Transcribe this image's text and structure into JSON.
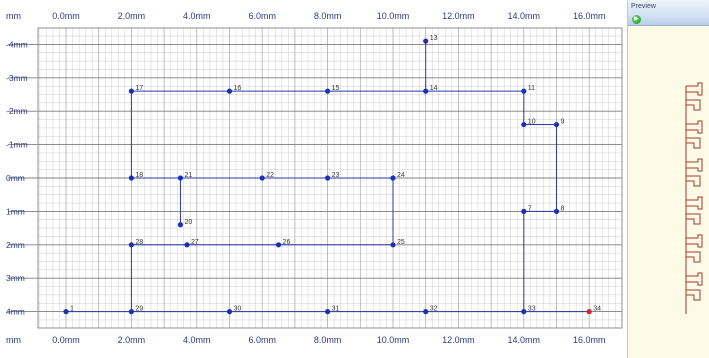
{
  "ruler": {
    "top_corner": "mm",
    "bottom_corner": "mm",
    "x_labels": [
      {
        "v": 0,
        "text": "0.0mm"
      },
      {
        "v": 2,
        "text": "2.0mm"
      },
      {
        "v": 4,
        "text": "4.0mm"
      },
      {
        "v": 6,
        "text": "6.0mm"
      },
      {
        "v": 8,
        "text": "8.0mm"
      },
      {
        "v": 10,
        "text": "10.0mm"
      },
      {
        "v": 12,
        "text": "12.0mm"
      },
      {
        "v": 14,
        "text": "14.0mm"
      },
      {
        "v": 16,
        "text": "16.0mm"
      }
    ],
    "y_labels": [
      {
        "v": -4,
        "text": "-4mm"
      },
      {
        "v": -3,
        "text": "-3mm"
      },
      {
        "v": -2,
        "text": "-2mm"
      },
      {
        "v": -1,
        "text": "-1mm"
      },
      {
        "v": 0,
        "text": "0mm"
      },
      {
        "v": 1,
        "text": "1mm"
      },
      {
        "v": 2,
        "text": "2mm"
      },
      {
        "v": 3,
        "text": "3mm"
      },
      {
        "v": 4,
        "text": "4mm"
      }
    ]
  },
  "points": [
    {
      "id": "1",
      "x": 0,
      "y": 4
    },
    {
      "id": "29",
      "x": 2,
      "y": 4
    },
    {
      "id": "30",
      "x": 5,
      "y": 4
    },
    {
      "id": "31",
      "x": 8,
      "y": 4
    },
    {
      "id": "32",
      "x": 11,
      "y": 4
    },
    {
      "id": "33",
      "x": 14,
      "y": 4
    },
    {
      "id": "34",
      "x": 16,
      "y": 4,
      "selected": true
    },
    {
      "id": "28",
      "x": 2,
      "y": 2
    },
    {
      "id": "27",
      "x": 3.7,
      "y": 2
    },
    {
      "id": "26",
      "x": 6.5,
      "y": 2
    },
    {
      "id": "25",
      "x": 10,
      "y": 2
    },
    {
      "id": "20",
      "x": 3.5,
      "y": 1.4
    },
    {
      "id": "7",
      "x": 14,
      "y": 1
    },
    {
      "id": "8",
      "x": 15,
      "y": 1
    },
    {
      "id": "18",
      "x": 2,
      "y": 0
    },
    {
      "id": "21",
      "x": 3.5,
      "y": 0
    },
    {
      "id": "22",
      "x": 6,
      "y": 0
    },
    {
      "id": "23",
      "x": 8,
      "y": 0
    },
    {
      "id": "24",
      "x": 10,
      "y": 0
    },
    {
      "id": "10",
      "x": 14,
      "y": -1.6
    },
    {
      "id": "9",
      "x": 15,
      "y": -1.6
    },
    {
      "id": "17",
      "x": 2,
      "y": -2.6
    },
    {
      "id": "16",
      "x": 5,
      "y": -2.6
    },
    {
      "id": "15",
      "x": 8,
      "y": -2.6
    },
    {
      "id": "14",
      "x": 11,
      "y": -2.6
    },
    {
      "id": "11",
      "x": 14,
      "y": -2.6
    },
    {
      "id": "13",
      "x": 11,
      "y": -4.1
    }
  ],
  "segments": [
    [
      "1",
      "29"
    ],
    [
      "29",
      "30"
    ],
    [
      "30",
      "31"
    ],
    [
      "31",
      "32"
    ],
    [
      "32",
      "33"
    ],
    [
      "33",
      "34"
    ],
    [
      "29",
      "28"
    ],
    [
      "28",
      "27"
    ],
    [
      "27",
      "26"
    ],
    [
      "26",
      "25"
    ],
    [
      "25",
      "24"
    ],
    [
      "24",
      "23"
    ],
    [
      "23",
      "22"
    ],
    [
      "22",
      "21"
    ],
    [
      "21",
      "18"
    ],
    [
      "21",
      "20"
    ],
    [
      "18",
      "17"
    ],
    [
      "17",
      "16"
    ],
    [
      "16",
      "15"
    ],
    [
      "15",
      "14"
    ],
    [
      "14",
      "11"
    ],
    [
      "14",
      "13"
    ],
    [
      "11",
      "10"
    ],
    [
      "10",
      "9"
    ],
    [
      "9",
      "8"
    ],
    [
      "8",
      "7"
    ],
    [
      "7",
      "33"
    ]
  ],
  "preview": {
    "title": "Preview",
    "go_icon": "green-arrow-icon",
    "trace_color": "#a33a2a"
  },
  "colors": {
    "point": "#1a2fbf",
    "selected_point": "#e02020",
    "line": "#2a3aa8",
    "grid_major": "#7f7f7f",
    "grid_minor": "#cfcfcf"
  }
}
